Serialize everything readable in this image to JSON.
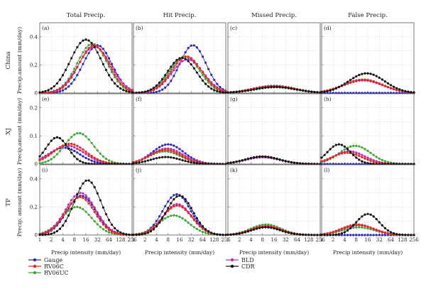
{
  "chart_data": {
    "type": "line",
    "columns": [
      "Total Precip.",
      "Hit Precip.",
      "Missed Precip.",
      "False Precip."
    ],
    "rows": [
      "China",
      "XJ",
      "TP"
    ],
    "ylabel": "Precip.amount (mm/day)",
    "ylabel_tp": "Precip. amount (mm/day)",
    "xlabel": "Precip intensity (mm/day)",
    "x_ticks": [
      "1",
      "2",
      "4",
      "8",
      "16",
      "32",
      "64",
      "128",
      "256"
    ],
    "x": [
      1,
      1.19,
      1.41,
      1.68,
      2,
      2.38,
      2.83,
      3.36,
      4,
      4.76,
      5.66,
      6.73,
      8,
      9.51,
      11.31,
      13.45,
      16,
      19.03,
      22.63,
      26.91,
      32,
      38.05,
      45.25,
      53.82,
      64,
      76.11,
      90.51,
      107.63,
      128,
      152.22,
      181.02,
      215.27,
      256
    ],
    "ylim": [
      0,
      0.5
    ],
    "y_ticks": {
      "China": [
        "0",
        "0.2",
        "0.4"
      ],
      "XJ": [
        "0",
        "0.1",
        "0.2"
      ],
      "TP": [
        "0",
        "0.2",
        "0.4"
      ]
    },
    "series_names": [
      "Gauge",
      "RV06C",
      "RV06UC",
      "BLD",
      "CDR"
    ],
    "series_colors": {
      "Gauge": "#2b2bb8",
      "RV06C": "#e02a24",
      "RV06UC": "#3ea838",
      "BLD": "#c42aa8",
      "CDR": "#141414"
    },
    "panel_labels": [
      "(a)",
      "(b)",
      "(c)",
      "(d)",
      "(e)",
      "(f)",
      "(g)",
      "(h)",
      "(i)",
      "(j)",
      "(k)",
      "(l)"
    ],
    "legend": {
      "col1": [
        "Gauge",
        "RV06C",
        "RV06UC"
      ],
      "col2": [
        "BLD",
        "CDR"
      ]
    },
    "panels": [
      {
        "label": "(a)",
        "row": "China",
        "col": "Total Precip.",
        "ymax": 0.5,
        "series": {
          "Gauge": {
            "peak": 0.34,
            "center": 5.0,
            "sigma": 1.25,
            "base": 0.0,
            "tail": 0.0
          },
          "RV06C": {
            "peak": 0.34,
            "center": 4.7,
            "sigma": 1.3,
            "base": 0.0,
            "tail": 0.0
          },
          "RV06UC": {
            "peak": 0.35,
            "center": 4.55,
            "sigma": 1.3,
            "base": 0.0,
            "tail": 0.0
          },
          "BLD": {
            "peak": 0.33,
            "center": 4.75,
            "sigma": 1.4,
            "base": 0.0,
            "tail": 0.0
          },
          "CDR": {
            "peak": 0.38,
            "center": 4.0,
            "sigma": 1.35,
            "base": 0.0,
            "tail": 0.0
          }
        }
      },
      {
        "label": "(b)",
        "row": "China",
        "col": "Hit Precip.",
        "ymax": 0.5,
        "series": {
          "Gauge": {
            "peak": 0.34,
            "center": 5.15,
            "sigma": 1.15,
            "base": 0.0,
            "tail": 0.0
          },
          "RV06C": {
            "peak": 0.26,
            "center": 4.6,
            "sigma": 1.3,
            "base": 0.0,
            "tail": 0.0
          },
          "RV06UC": {
            "peak": 0.26,
            "center": 4.45,
            "sigma": 1.3,
            "base": 0.0,
            "tail": 0.0
          },
          "BLD": {
            "peak": 0.24,
            "center": 4.7,
            "sigma": 1.35,
            "base": 0.0,
            "tail": 0.0
          },
          "CDR": {
            "peak": 0.25,
            "center": 4.2,
            "sigma": 1.25,
            "base": 0.0,
            "tail": 0.0
          }
        }
      },
      {
        "label": "(c)",
        "row": "China",
        "col": "Missed Precip.",
        "ymax": 0.5,
        "series": {
          "Gauge": {
            "peak": 0.045,
            "center": 4.0,
            "sigma": 1.8,
            "base": 0.0,
            "tail": 0.0
          },
          "RV06C": {
            "peak": 0.05,
            "center": 4.0,
            "sigma": 1.8,
            "base": 0.0,
            "tail": 0.0
          },
          "RV06UC": {
            "peak": 0.052,
            "center": 4.0,
            "sigma": 1.8,
            "base": 0.0,
            "tail": 0.0
          },
          "BLD": {
            "peak": 0.05,
            "center": 4.0,
            "sigma": 1.8,
            "base": 0.0,
            "tail": 0.0
          },
          "CDR": {
            "peak": 0.042,
            "center": 4.1,
            "sigma": 1.8,
            "base": 0.0,
            "tail": 0.0
          }
        }
      },
      {
        "label": "(d)",
        "row": "China",
        "col": "False Precip.",
        "ymax": 0.5,
        "series": {
          "Gauge": {
            "peak": 0.0,
            "center": 4.0,
            "sigma": 1.8,
            "base": 0.0,
            "tail": 0.0
          },
          "RV06C": {
            "peak": 0.095,
            "center": 3.6,
            "sigma": 1.7,
            "base": 0.0,
            "tail": 0.0
          },
          "RV06UC": {
            "peak": 0.095,
            "center": 3.6,
            "sigma": 1.7,
            "base": 0.0,
            "tail": 0.0
          },
          "BLD": {
            "peak": 0.09,
            "center": 3.6,
            "sigma": 1.7,
            "base": 0.0,
            "tail": 0.0
          },
          "CDR": {
            "peak": 0.14,
            "center": 3.9,
            "sigma": 1.55,
            "base": 0.0,
            "tail": 0.0
          }
        }
      },
      {
        "label": "(e)",
        "row": "XJ",
        "col": "Total Precip.",
        "ymax": 0.25,
        "series": {
          "Gauge": {
            "peak": 0.058,
            "center": 2.1,
            "sigma": 1.35,
            "base": 0.0,
            "tail": 0.0
          },
          "RV06C": {
            "peak": 0.072,
            "center": 2.6,
            "sigma": 1.4,
            "base": 0.0,
            "tail": 0.0
          },
          "RV06UC": {
            "peak": 0.11,
            "center": 3.4,
            "sigma": 1.25,
            "base": 0.0,
            "tail": 0.0
          },
          "BLD": {
            "peak": 0.065,
            "center": 2.4,
            "sigma": 1.45,
            "base": 0.0,
            "tail": 0.0
          },
          "CDR": {
            "peak": 0.095,
            "center": 1.5,
            "sigma": 0.95,
            "base": 0.0,
            "tail": 0.0
          }
        }
      },
      {
        "label": "(f)",
        "row": "XJ",
        "col": "Hit Precip.",
        "ymax": 0.25,
        "series": {
          "Gauge": {
            "peak": 0.07,
            "center": 3.0,
            "sigma": 1.35,
            "base": 0.0,
            "tail": 0.0
          },
          "RV06C": {
            "peak": 0.05,
            "center": 2.8,
            "sigma": 1.35,
            "base": 0.0,
            "tail": 0.0
          },
          "RV06UC": {
            "peak": 0.045,
            "center": 2.7,
            "sigma": 1.4,
            "base": 0.0,
            "tail": 0.0
          },
          "BLD": {
            "peak": 0.055,
            "center": 2.9,
            "sigma": 1.4,
            "base": 0.0,
            "tail": 0.0
          },
          "CDR": {
            "peak": 0.025,
            "center": 2.8,
            "sigma": 1.3,
            "base": 0.0,
            "tail": 0.0
          }
        }
      },
      {
        "label": "(g)",
        "row": "XJ",
        "col": "Missed Precip.",
        "ymax": 0.25,
        "series": {
          "Gauge": {
            "peak": 0.024,
            "center": 3.0,
            "sigma": 1.5,
            "base": 0.0,
            "tail": 0.0
          },
          "RV06C": {
            "peak": 0.026,
            "center": 3.0,
            "sigma": 1.5,
            "base": 0.0,
            "tail": 0.0
          },
          "RV06UC": {
            "peak": 0.026,
            "center": 3.0,
            "sigma": 1.5,
            "base": 0.0,
            "tail": 0.0
          },
          "BLD": {
            "peak": 0.025,
            "center": 3.0,
            "sigma": 1.5,
            "base": 0.0,
            "tail": 0.0
          },
          "CDR": {
            "peak": 0.027,
            "center": 3.0,
            "sigma": 1.45,
            "base": 0.0,
            "tail": 0.0
          }
        }
      },
      {
        "label": "(h)",
        "row": "XJ",
        "col": "False Precip.",
        "ymax": 0.25,
        "series": {
          "Gauge": {
            "peak": 0.0,
            "center": 2.5,
            "sigma": 1.4,
            "base": 0.0,
            "tail": 0.0
          },
          "RV06C": {
            "peak": 0.04,
            "center": 2.2,
            "sigma": 1.3,
            "base": 0.0,
            "tail": 0.0
          },
          "RV06UC": {
            "peak": 0.065,
            "center": 2.9,
            "sigma": 1.35,
            "base": 0.0,
            "tail": 0.0
          },
          "BLD": {
            "peak": 0.045,
            "center": 2.4,
            "sigma": 1.35,
            "base": 0.0,
            "tail": 0.0
          },
          "CDR": {
            "peak": 0.07,
            "center": 1.5,
            "sigma": 1.0,
            "base": 0.0,
            "tail": 0.0
          }
        }
      },
      {
        "label": "(i)",
        "row": "TP",
        "col": "Total Precip.",
        "ymax": 0.5,
        "series": {
          "Gauge": {
            "peak": 0.28,
            "center": 3.6,
            "sigma": 1.25,
            "base": 0.0,
            "tail": 0.0
          },
          "RV06C": {
            "peak": 0.27,
            "center": 3.5,
            "sigma": 1.25,
            "base": 0.0,
            "tail": 0.0
          },
          "RV06UC": {
            "peak": 0.2,
            "center": 3.2,
            "sigma": 1.3,
            "base": 0.0,
            "tail": 0.0
          },
          "BLD": {
            "peak": 0.3,
            "center": 3.55,
            "sigma": 1.3,
            "base": 0.0,
            "tail": 0.0
          },
          "CDR": {
            "peak": 0.39,
            "center": 4.15,
            "sigma": 1.15,
            "base": 0.0,
            "tail": 0.0
          }
        }
      },
      {
        "label": "(j)",
        "row": "TP",
        "col": "Hit Precip.",
        "ymax": 0.5,
        "series": {
          "Gauge": {
            "peak": 0.29,
            "center": 3.75,
            "sigma": 1.2,
            "base": 0.0,
            "tail": 0.0
          },
          "RV06C": {
            "peak": 0.21,
            "center": 3.8,
            "sigma": 1.25,
            "base": 0.0,
            "tail": 0.0
          },
          "RV06UC": {
            "peak": 0.14,
            "center": 3.5,
            "sigma": 1.3,
            "base": 0.0,
            "tail": 0.0
          },
          "BLD": {
            "peak": 0.22,
            "center": 3.8,
            "sigma": 1.25,
            "base": 0.0,
            "tail": 0.0
          },
          "CDR": {
            "peak": 0.28,
            "center": 4.0,
            "sigma": 1.15,
            "base": 0.0,
            "tail": 0.0
          }
        }
      },
      {
        "label": "(k)",
        "row": "TP",
        "col": "Missed Precip.",
        "ymax": 0.5,
        "series": {
          "Gauge": {
            "peak": 0.06,
            "center": 3.3,
            "sigma": 1.3,
            "base": 0.0,
            "tail": 0.0
          },
          "RV06C": {
            "peak": 0.065,
            "center": 3.3,
            "sigma": 1.3,
            "base": 0.0,
            "tail": 0.0
          },
          "RV06UC": {
            "peak": 0.075,
            "center": 3.3,
            "sigma": 1.3,
            "base": 0.0,
            "tail": 0.0
          },
          "BLD": {
            "peak": 0.06,
            "center": 3.3,
            "sigma": 1.3,
            "base": 0.0,
            "tail": 0.0
          },
          "CDR": {
            "peak": 0.055,
            "center": 3.3,
            "sigma": 1.25,
            "base": 0.0,
            "tail": 0.0
          }
        }
      },
      {
        "label": "(l)",
        "row": "TP",
        "col": "False Precip.",
        "ymax": 0.5,
        "series": {
          "Gauge": {
            "peak": 0.0,
            "center": 3.3,
            "sigma": 1.3,
            "base": 0.0,
            "tail": 0.0
          },
          "RV06C": {
            "peak": 0.075,
            "center": 3.1,
            "sigma": 1.35,
            "base": 0.0,
            "tail": 0.0
          },
          "RV06UC": {
            "peak": 0.055,
            "center": 3.2,
            "sigma": 1.4,
            "base": 0.0,
            "tail": 0.0
          },
          "BLD": {
            "peak": 0.07,
            "center": 3.2,
            "sigma": 1.4,
            "base": 0.0,
            "tail": 0.0
          },
          "CDR": {
            "peak": 0.15,
            "center": 4.0,
            "sigma": 1.0,
            "base": 0.0,
            "tail": 0.0
          }
        }
      }
    ]
  }
}
